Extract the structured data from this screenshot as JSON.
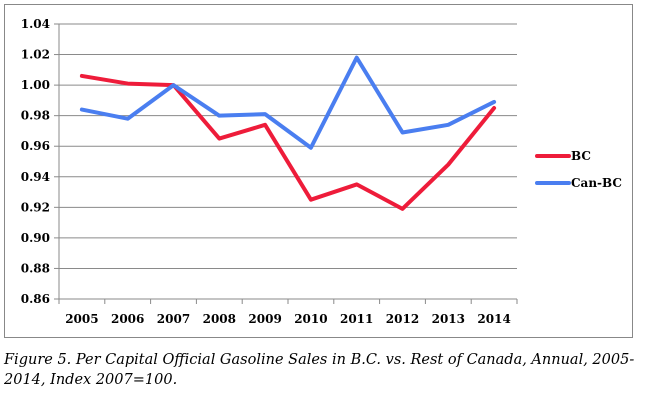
{
  "caption": "Figure 5. Per Capital Official Gasoline Sales in B.C. vs. Rest of Canada, Annual, 2005-2014, Index 2007=100.",
  "chart_data": {
    "type": "line",
    "title": "",
    "xlabel": "",
    "ylabel": "",
    "x": [
      "2005",
      "2006",
      "2007",
      "2008",
      "2009",
      "2010",
      "2011",
      "2012",
      "2013",
      "2014"
    ],
    "ylim": [
      0.86,
      1.04
    ],
    "yticks": [
      "0.86",
      "0.88",
      "0.90",
      "0.92",
      "0.94",
      "0.96",
      "0.98",
      "1.00",
      "1.02",
      "1.04"
    ],
    "grid": "horizontal",
    "legend_position": "right",
    "series": [
      {
        "name": "BC",
        "color": "#ee1c3a",
        "values": [
          1.006,
          1.001,
          1.0,
          0.965,
          0.974,
          0.925,
          0.935,
          0.919,
          0.948,
          0.985
        ]
      },
      {
        "name": "Can-BC",
        "color": "#4a7ef0",
        "values": [
          0.984,
          0.978,
          1.0,
          0.98,
          0.981,
          0.959,
          1.018,
          0.969,
          0.974,
          0.989
        ]
      }
    ]
  }
}
